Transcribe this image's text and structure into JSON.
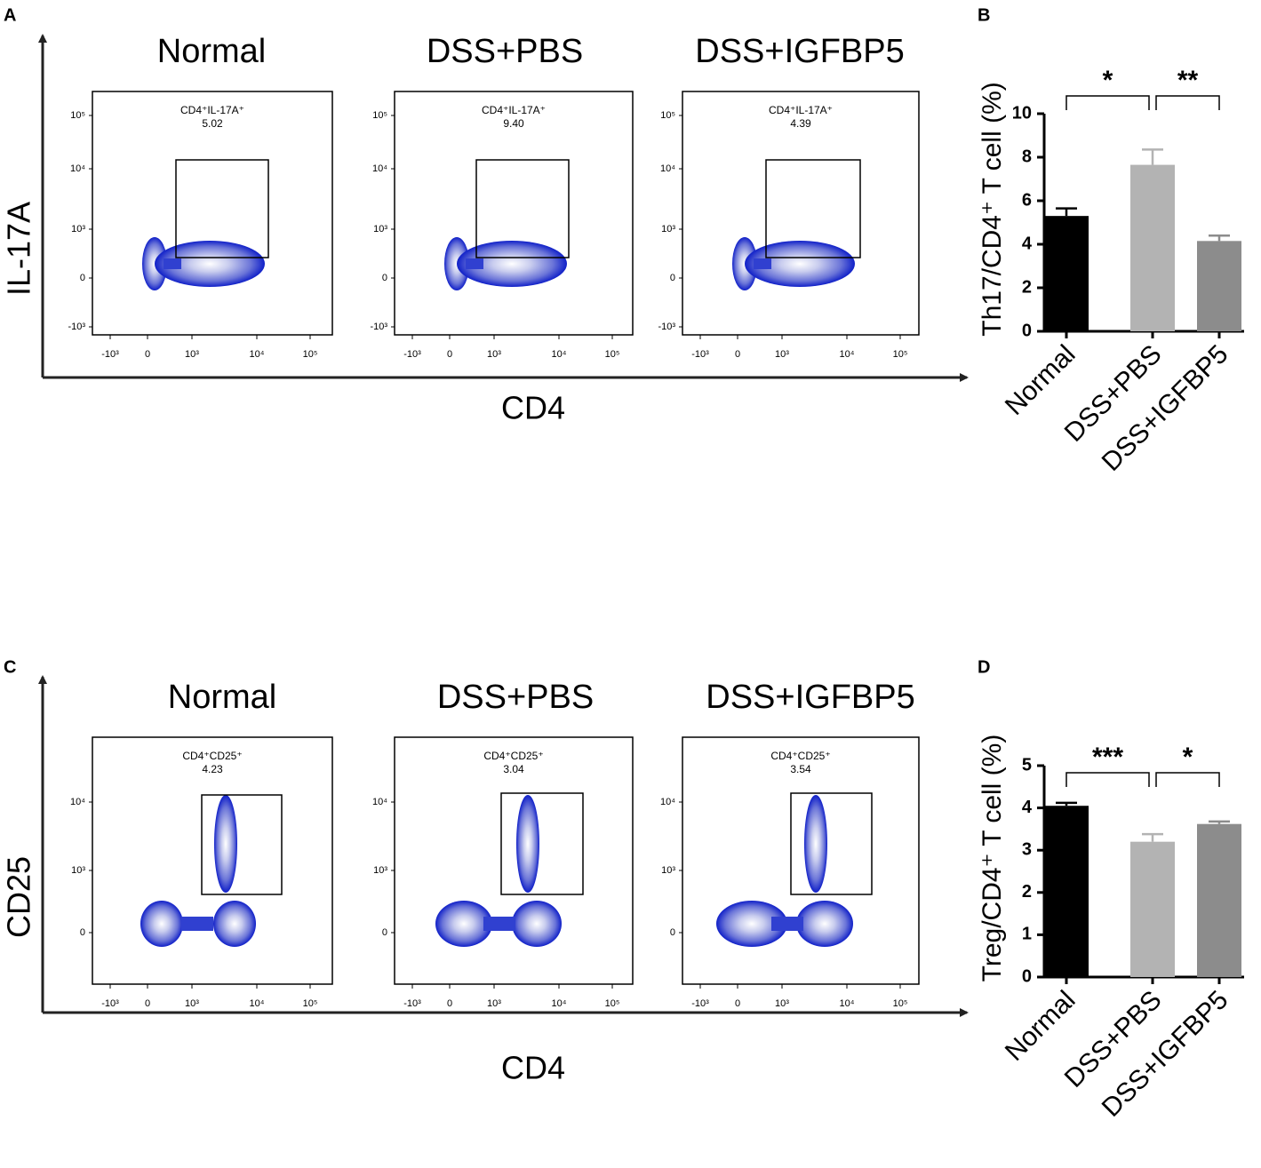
{
  "flow_panels": [
    {
      "label": "A",
      "y_axis": "IL-17A",
      "x_axis": "CD4",
      "y_tick_labels": [
        "10⁵",
        "10⁴",
        "10³",
        "0",
        "-10³"
      ],
      "x_tick_labels": [
        "-10³",
        "0",
        "10³",
        "10⁴",
        "10⁵"
      ],
      "plots": [
        {
          "title": "Normal",
          "gate": "CD4⁺IL-17A⁺",
          "percent": "5.02"
        },
        {
          "title": "DSS+PBS",
          "gate": "CD4⁺IL-17A⁺",
          "percent": "9.40"
        },
        {
          "title": "DSS+IGFBP5",
          "gate": "CD4⁺IL-17A⁺",
          "percent": "4.39"
        }
      ]
    },
    {
      "label": "C",
      "y_axis": "CD25",
      "x_axis": "CD4",
      "y_tick_labels": [
        "10⁴",
        "10³",
        "0"
      ],
      "x_tick_labels": [
        "-10³",
        "0",
        "10³",
        "10⁴",
        "10⁵"
      ],
      "plots": [
        {
          "title": "Normal",
          "gate": "CD4⁺CD25⁺",
          "percent": "4.23"
        },
        {
          "title": "DSS+PBS",
          "gate": "CD4⁺CD25⁺",
          "percent": "3.04"
        },
        {
          "title": "DSS+IGFBP5",
          "gate": "CD4⁺CD25⁺",
          "percent": "3.54"
        }
      ]
    }
  ],
  "chart_data": [
    {
      "type": "bar",
      "label": "B",
      "ylabel": "Th17/CD4⁺ T cell (%)",
      "categories": [
        "Normal",
        "DSS+PBS",
        "DSS+IGFBP5"
      ],
      "values": [
        5.3,
        7.65,
        4.15
      ],
      "errors": [
        0.35,
        0.7,
        0.25
      ],
      "colors": [
        "#000000",
        "#b3b3b3",
        "#8c8c8c"
      ],
      "ylim": [
        0,
        10
      ],
      "yticks": [
        0,
        2,
        4,
        6,
        8,
        10
      ],
      "significance": [
        "*",
        "**"
      ]
    },
    {
      "type": "bar",
      "label": "D",
      "ylabel": "Treg/CD4⁺ T cell (%)",
      "categories": [
        "Normal",
        "DSS+PBS",
        "DSS+IGFBP5"
      ],
      "values": [
        4.05,
        3.2,
        3.62
      ],
      "errors": [
        0.07,
        0.18,
        0.06
      ],
      "colors": [
        "#000000",
        "#b3b3b3",
        "#8c8c8c"
      ],
      "ylim": [
        0,
        5
      ],
      "yticks": [
        0,
        1,
        2,
        3,
        4,
        5
      ],
      "significance": [
        "***",
        "*"
      ]
    }
  ]
}
